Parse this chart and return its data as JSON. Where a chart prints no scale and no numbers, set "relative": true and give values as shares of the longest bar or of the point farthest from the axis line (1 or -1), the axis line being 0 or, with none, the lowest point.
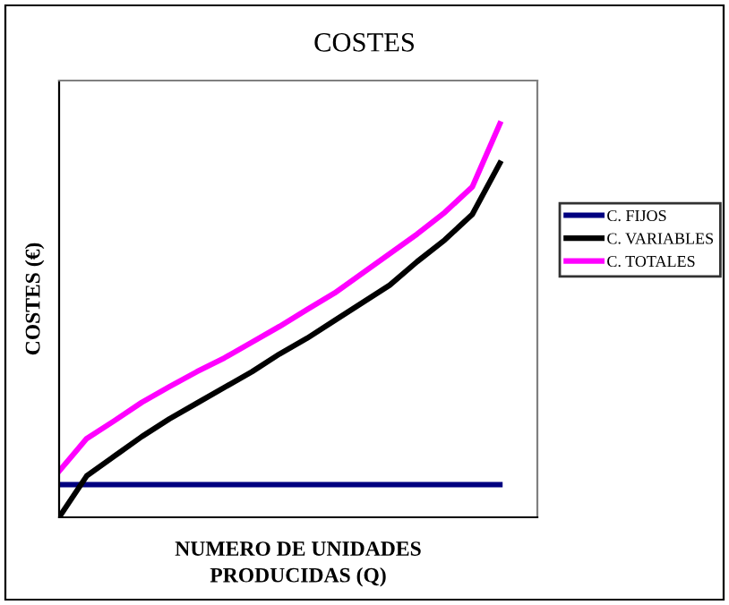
{
  "chart_data": {
    "type": "line",
    "title": "COSTES",
    "xlabel": "NUMERO DE UNIDADES\nPRODUCIDAS (Q)",
    "ylabel": "COSTES (€)",
    "relative": true,
    "legend": "right",
    "grid": false,
    "marker": "none",
    "line_style": "solid",
    "categories": [
      null,
      null,
      null,
      null,
      null,
      null,
      null,
      null,
      null,
      null,
      null,
      null,
      null,
      null,
      null,
      null,
      null
    ],
    "series": [
      {
        "name": "C. FIJOS",
        "color": "#000080",
        "values": [
          0.083,
          0.083,
          0.083,
          0.083,
          0.083,
          0.083,
          0.083,
          0.083,
          0.083,
          0.083,
          0.083,
          0.083,
          0.083,
          0.083,
          0.083,
          0.083,
          0.083
        ]
      },
      {
        "name": "C. VARIABLES",
        "color": "#000000",
        "values": [
          0.0,
          0.105,
          0.155,
          0.205,
          0.25,
          0.29,
          0.33,
          0.37,
          0.415,
          0.455,
          0.5,
          0.545,
          0.59,
          0.65,
          0.705,
          0.77,
          0.9
        ]
      },
      {
        "name": "C. TOTALES",
        "color": "#ff00ff",
        "values": [
          0.117,
          0.2,
          0.245,
          0.292,
          0.332,
          0.37,
          0.405,
          0.445,
          0.485,
          0.528,
          0.57,
          0.62,
          0.67,
          0.72,
          0.775,
          0.84,
          1.0
        ]
      }
    ]
  }
}
